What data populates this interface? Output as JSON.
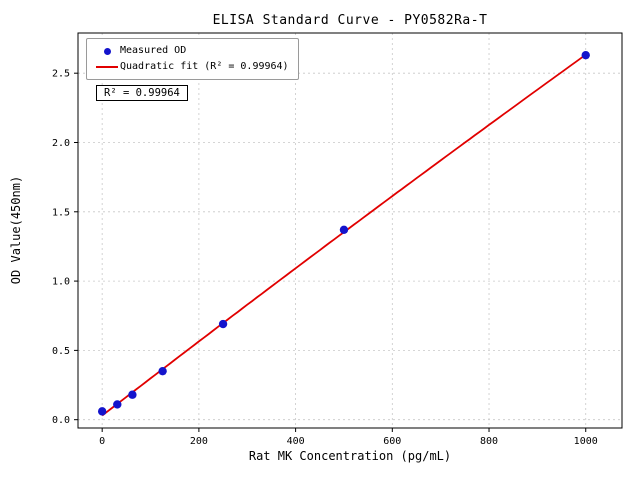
{
  "chart_data": {
    "type": "scatter",
    "title": "ELISA Standard Curve - PY0582Ra-T",
    "xlabel": "Rat MK Concentration (pg/mL)",
    "ylabel": "OD Value(450nm)",
    "x": [
      0,
      31.25,
      62.5,
      125,
      250,
      500,
      1000
    ],
    "series": [
      {
        "name": "Measured OD",
        "type": "scatter",
        "values": [
          0.06,
          0.11,
          0.18,
          0.35,
          0.69,
          1.37,
          2.63
        ]
      },
      {
        "name": "Quadratic fit (R² = 0.99964)",
        "type": "quadratic-fit",
        "r_squared": 0.99964
      }
    ],
    "annotation": "R² = 0.99964",
    "xticks": [
      0,
      200,
      400,
      600,
      800,
      1000
    ],
    "yticks": [
      0.0,
      0.5,
      1.0,
      1.5,
      2.0,
      2.5
    ],
    "xlim": [
      -50,
      1075
    ],
    "ylim": [
      -0.06,
      2.79
    ],
    "grid": true,
    "legend_position": "upper left",
    "colors": {
      "points": "#1414cc",
      "fit_line": "#e10000",
      "grid": "#c8c8c8",
      "axes": "#000000"
    }
  }
}
